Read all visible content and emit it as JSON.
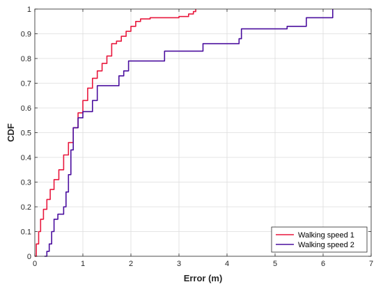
{
  "chart_data": {
    "type": "line",
    "title": "",
    "xlabel": "Error (m)",
    "ylabel": "CDF",
    "xlim": [
      0,
      7
    ],
    "ylim": [
      0,
      1
    ],
    "xticks": [
      0,
      1,
      2,
      3,
      4,
      5,
      6,
      7
    ],
    "yticks": [
      0,
      0.1,
      0.2,
      0.3,
      0.4,
      0.5,
      0.6,
      0.7,
      0.8,
      0.9,
      1
    ],
    "xtick_labels": [
      "0",
      "1",
      "2",
      "3",
      "4",
      "5",
      "6",
      "7"
    ],
    "ytick_labels": [
      "0",
      "0.1",
      "0.2",
      "0.3",
      "0.4",
      "0.5",
      "0.6",
      "0.7",
      "0.8",
      "0.9",
      "1"
    ],
    "grid": true,
    "legend_position": "bottom-right",
    "series": [
      {
        "name": "Walking speed 1",
        "color": "#e8173c",
        "x": [
          0,
          0.03,
          0.08,
          0.12,
          0.18,
          0.25,
          0.32,
          0.4,
          0.5,
          0.6,
          0.7,
          0.8,
          0.9,
          1.0,
          1.1,
          1.2,
          1.3,
          1.4,
          1.5,
          1.6,
          1.7,
          1.8,
          1.9,
          2.0,
          2.1,
          2.2,
          2.4,
          2.6,
          2.8,
          3.0,
          3.1,
          3.2,
          3.3,
          3.35
        ],
        "y": [
          0,
          0.05,
          0.1,
          0.15,
          0.19,
          0.23,
          0.27,
          0.31,
          0.35,
          0.41,
          0.46,
          0.52,
          0.58,
          0.63,
          0.68,
          0.72,
          0.75,
          0.78,
          0.81,
          0.86,
          0.87,
          0.89,
          0.91,
          0.93,
          0.95,
          0.96,
          0.965,
          0.965,
          0.965,
          0.97,
          0.97,
          0.98,
          0.99,
          1.0
        ]
      },
      {
        "name": "Walking speed 2",
        "color": "#4a0e9e",
        "x": [
          0.2,
          0.25,
          0.3,
          0.35,
          0.4,
          0.48,
          0.55,
          0.6,
          0.65,
          0.7,
          0.75,
          0.8,
          0.9,
          1.0,
          1.1,
          1.2,
          1.3,
          1.5,
          1.65,
          1.75,
          1.85,
          1.95,
          2.0,
          2.6,
          2.7,
          3.4,
          3.5,
          4.15,
          4.25,
          4.3,
          5.15,
          5.25,
          5.55,
          5.65,
          6.15,
          6.2
        ],
        "y": [
          0,
          0.02,
          0.05,
          0.1,
          0.15,
          0.17,
          0.17,
          0.2,
          0.26,
          0.33,
          0.43,
          0.52,
          0.56,
          0.585,
          0.585,
          0.63,
          0.69,
          0.69,
          0.69,
          0.73,
          0.75,
          0.79,
          0.79,
          0.79,
          0.83,
          0.83,
          0.86,
          0.86,
          0.88,
          0.92,
          0.92,
          0.93,
          0.93,
          0.965,
          0.965,
          1.0
        ]
      }
    ]
  }
}
